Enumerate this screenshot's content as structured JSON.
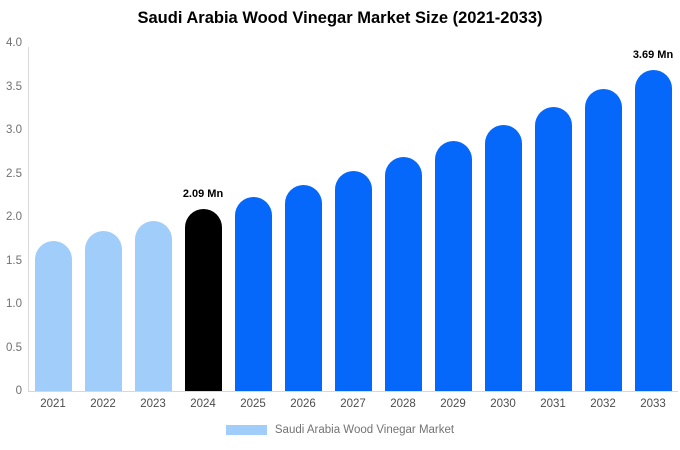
{
  "chart_data": {
    "type": "bar",
    "title": "Saudi Arabia Wood Vinegar Market Size (2021-2033)",
    "categories": [
      "2021",
      "2022",
      "2023",
      "2024",
      "2025",
      "2026",
      "2027",
      "2028",
      "2029",
      "2030",
      "2031",
      "2032",
      "2033"
    ],
    "values": [
      1.73,
      1.84,
      1.96,
      2.09,
      2.23,
      2.37,
      2.53,
      2.69,
      2.87,
      3.06,
      3.26,
      3.47,
      3.69
    ],
    "unit": "Mn",
    "bar_colors": [
      "#A0CDFA",
      "#A0CDFA",
      "#A0CDFA",
      "#000000",
      "#0667FB",
      "#0667FB",
      "#0667FB",
      "#0667FB",
      "#0667FB",
      "#0667FB",
      "#0667FB",
      "#0667FB",
      "#0667FB"
    ],
    "annotations": [
      {
        "index": 3,
        "text": "2.09 Mn"
      },
      {
        "index": 12,
        "text": "3.69 Mn"
      }
    ],
    "xlabel": "",
    "ylabel": "",
    "ylim": [
      0,
      4
    ],
    "yticks": [
      "0",
      "0.5",
      "1.0",
      "1.5",
      "2.0",
      "2.5",
      "3.0",
      "3.5",
      "4.0"
    ],
    "grid": false,
    "legend": {
      "label": "Saudi Arabia Wood Vinegar Market",
      "swatch_color": "#A0CDFA",
      "position": "bottom-center"
    },
    "colors": {
      "historical": "#A0CDFA",
      "base_year": "#000000",
      "forecast": "#0667FB",
      "axis_line": "#d8d8d8",
      "tick_text": "#707070",
      "category_text": "#4d4d4d",
      "legend_text": "#737373",
      "background": "#ffffff"
    }
  }
}
